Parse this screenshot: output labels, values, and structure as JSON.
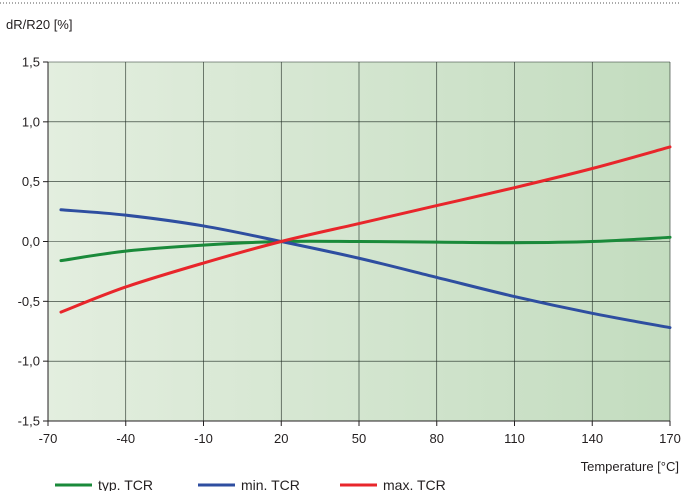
{
  "chart_data": {
    "type": "line",
    "title": "",
    "ylabel": "dR/R20 [%]",
    "xlabel": "Temperature [°C]",
    "xlim": [
      -70,
      170
    ],
    "ylim": [
      -1.5,
      1.5
    ],
    "x_ticks": [
      "-70",
      "-40",
      "-10",
      "20",
      "50",
      "80",
      "110",
      "140",
      "170"
    ],
    "y_ticks": [
      "1,5",
      "1,0",
      "0,5",
      "0,0",
      "-0,5",
      "-1,0",
      "-1,5"
    ],
    "grid": true,
    "legend_position": "bottom",
    "background": "green gradient, light on left to darker on right",
    "series": [
      {
        "name": "typ. TCR",
        "color": "#1a8a3a",
        "x": [
          -65,
          -40,
          -10,
          20,
          50,
          80,
          110,
          140,
          170
        ],
        "y": [
          -0.16,
          -0.08,
          -0.03,
          0.0,
          0.0,
          -0.005,
          -0.01,
          0.0,
          0.035
        ]
      },
      {
        "name": "min. TCR",
        "color": "#2e4ea0",
        "x": [
          -65,
          -40,
          -10,
          20,
          50,
          80,
          110,
          140,
          170
        ],
        "y": [
          0.265,
          0.22,
          0.13,
          0.0,
          -0.14,
          -0.3,
          -0.46,
          -0.6,
          -0.72
        ]
      },
      {
        "name": "max. TCR",
        "color": "#e8262b",
        "x": [
          -65,
          -40,
          -10,
          20,
          50,
          80,
          110,
          140,
          170
        ],
        "y": [
          -0.59,
          -0.38,
          -0.18,
          0.0,
          0.15,
          0.3,
          0.45,
          0.61,
          0.79
        ]
      }
    ]
  },
  "colors": {
    "grid": "#1e2a22",
    "axis": "#231f20",
    "bg_left": "#e3eedf",
    "bg_right": "#c3dcbf"
  }
}
